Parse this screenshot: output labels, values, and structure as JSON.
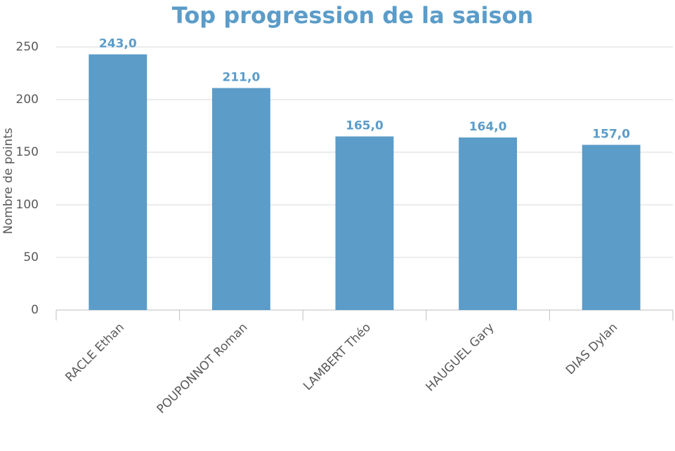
{
  "chart_data": {
    "type": "bar",
    "title": "Top progression de la saison",
    "y_label": "Nombre de points",
    "categories": [
      "RACLE Ethan",
      "POUPONNOT Roman",
      "LAMBERT Théo",
      "HAUGUEL Gary",
      "DIAS Dylan"
    ],
    "values": [
      243,
      211,
      165,
      164,
      157
    ],
    "value_labels": [
      "243,0",
      "211,0",
      "165,0",
      "164,0",
      "157,0"
    ],
    "color": "#5b9cc9",
    "ylim": [
      0,
      250
    ],
    "yticks": [
      0,
      50,
      100,
      150,
      200,
      250
    ],
    "grid": true
  }
}
